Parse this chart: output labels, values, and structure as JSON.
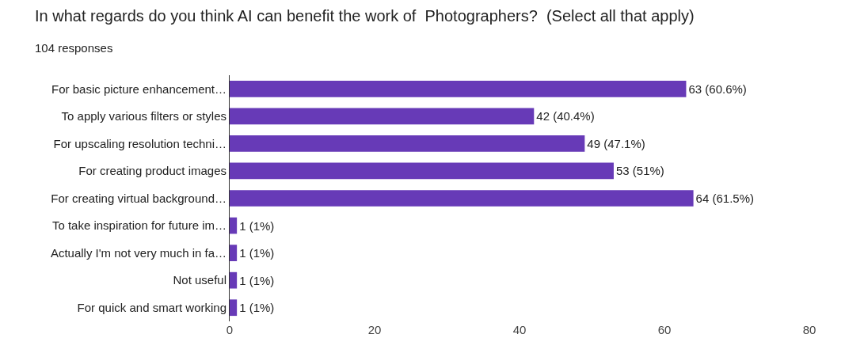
{
  "chart_data": {
    "type": "bar",
    "orientation": "horizontal",
    "title": "In what regards do you think AI can benefit the work of  Photographers?  (Select all that apply)",
    "subtitle": "104 responses",
    "categories": [
      "For basic picture enhancement…",
      "To apply various filters or styles",
      "For upscaling resolution techni…",
      "For creating product images",
      "For creating virtual background…",
      "To take inspiration for future im…",
      "Actually I'm not very much in fa…",
      "Not useful",
      "For quick and smart working"
    ],
    "values": [
      63,
      42,
      49,
      53,
      64,
      1,
      1,
      1,
      1
    ],
    "value_labels": [
      "63 (60.6%)",
      "42 (40.4%)",
      "49 (47.1%)",
      "53 (51%)",
      "64 (61.5%)",
      "1 (1%)",
      "1 (1%)",
      "1 (1%)",
      "1 (1%)"
    ],
    "color": "#673ab7",
    "xlim": [
      0,
      80
    ],
    "xticks": [
      0,
      20,
      40,
      60,
      80
    ],
    "grid": false
  }
}
